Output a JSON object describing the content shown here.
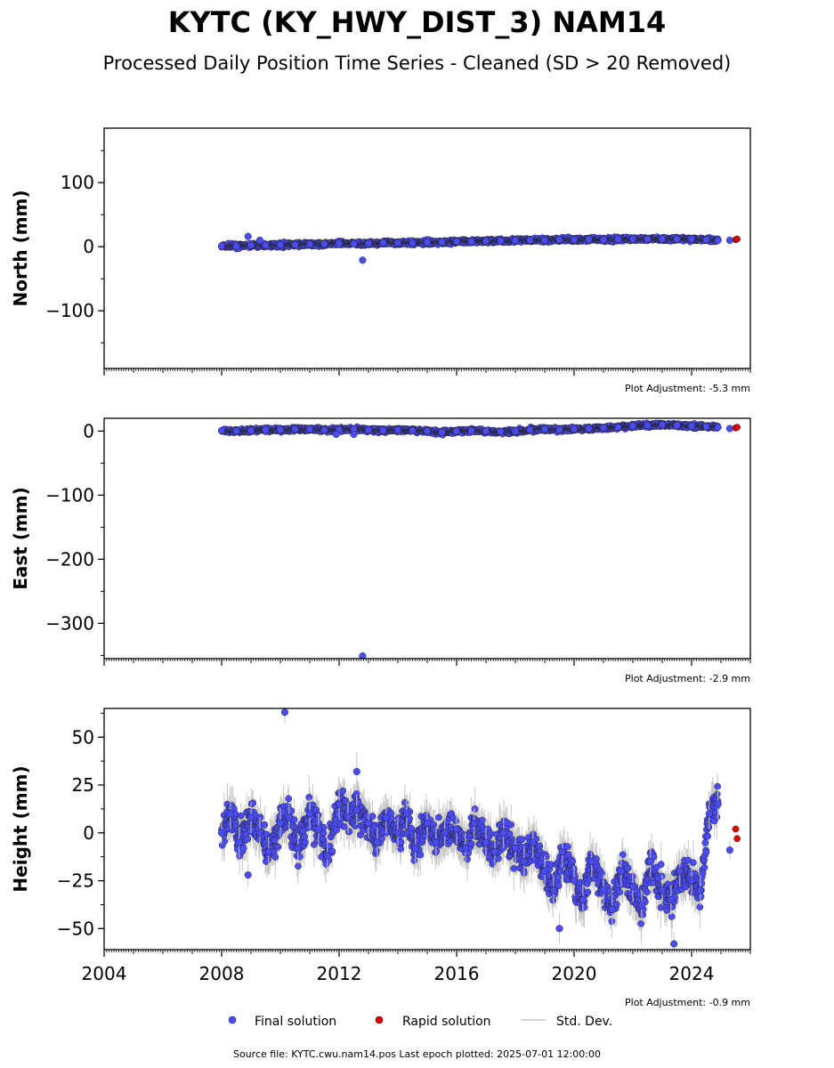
{
  "figure": {
    "title": "KYTC (KY_HWY_DIST_3) NAM14",
    "subtitle": "Processed Daily Position Time Series - Cleaned (SD > 20 Removed)",
    "footer": "Source file: KYTC.cwu.nam14.pos  Last epoch plotted: 2025-07-01 12:00:00",
    "legend": {
      "final": "Final solution",
      "rapid": "Rapid solution",
      "std": "Std. Dev."
    },
    "colors": {
      "final": "#4c4cff",
      "rapid": "#e00000",
      "std": "#c8c8c8",
      "marker_edge": "#222222"
    }
  },
  "chart_data": [
    {
      "type": "scatter",
      "ylabel": "North (mm)",
      "note": "Plot Adjustment: -5.3 mm",
      "xlim": [
        2004,
        2026
      ],
      "ylim": [
        -190,
        185
      ],
      "yticks": [
        -100,
        0,
        100
      ],
      "xticks": [
        2004,
        2008,
        2012,
        2016,
        2020,
        2024
      ],
      "x_tick_labels_shown": false,
      "final_x": [
        2008.0,
        2008.5,
        2009.0,
        2009.5,
        2010.0,
        2010.5,
        2011.0,
        2011.5,
        2012.0,
        2012.5,
        2013.0,
        2013.5,
        2014.0,
        2014.5,
        2015.0,
        2015.5,
        2016.0,
        2016.5,
        2017.0,
        2017.5,
        2018.0,
        2018.5,
        2019.0,
        2019.5,
        2020.0,
        2020.5,
        2021.0,
        2021.5,
        2022.0,
        2022.5,
        2023.0,
        2023.5,
        2024.0,
        2024.5,
        2024.9,
        2008.9,
        2009.3,
        2012.8,
        2025.3
      ],
      "final_y": [
        1,
        1,
        2,
        2,
        3,
        3,
        4,
        4,
        5,
        5,
        5,
        6,
        6,
        6,
        7,
        7,
        8,
        8,
        9,
        9,
        10,
        10,
        10,
        11,
        11,
        11,
        11,
        12,
        12,
        12,
        12,
        12,
        12,
        11,
        10,
        16,
        10,
        -21,
        10
      ],
      "final_std": [
        4,
        5,
        5,
        5,
        5,
        5,
        5,
        5,
        5,
        5,
        5,
        5,
        5,
        5,
        5,
        5,
        5,
        5,
        5,
        5,
        5,
        5,
        5,
        5,
        5,
        5,
        5,
        5,
        5,
        5,
        5,
        5,
        5,
        5,
        5,
        8,
        6,
        6,
        2
      ],
      "rapid_x": [
        2025.5,
        2025.55
      ],
      "rapid_y": [
        11,
        12
      ]
    },
    {
      "type": "scatter",
      "ylabel": "East (mm)",
      "note": "Plot Adjustment: -2.9 mm",
      "xlim": [
        2004,
        2026
      ],
      "ylim": [
        -355,
        20
      ],
      "yticks": [
        -300,
        -200,
        -100,
        0
      ],
      "xticks": [
        2004,
        2008,
        2012,
        2016,
        2020,
        2024
      ],
      "x_tick_labels_shown": false,
      "final_x": [
        2008.0,
        2008.5,
        2009.0,
        2009.5,
        2010.0,
        2010.5,
        2011.0,
        2011.5,
        2012.0,
        2012.5,
        2013.0,
        2013.5,
        2014.0,
        2014.5,
        2015.0,
        2015.5,
        2016.0,
        2016.5,
        2017.0,
        2017.5,
        2018.0,
        2018.5,
        2019.0,
        2019.5,
        2020.0,
        2020.5,
        2021.0,
        2021.5,
        2022.0,
        2022.5,
        2023.0,
        2023.5,
        2024.0,
        2024.5,
        2024.9,
        2011.9,
        2012.5,
        2012.8,
        2025.3
      ],
      "final_y": [
        1,
        0,
        1,
        2,
        2,
        3,
        3,
        2,
        2,
        3,
        2,
        1,
        2,
        1,
        0,
        -2,
        0,
        1,
        0,
        -1,
        0,
        2,
        3,
        2,
        3,
        4,
        5,
        6,
        8,
        9,
        10,
        9,
        8,
        7,
        6,
        -5,
        -5,
        -351,
        4
      ],
      "final_std": [
        4,
        5,
        5,
        5,
        5,
        5,
        5,
        5,
        5,
        5,
        5,
        5,
        5,
        5,
        5,
        5,
        5,
        5,
        5,
        5,
        5,
        5,
        5,
        5,
        5,
        5,
        5,
        5,
        5,
        5,
        5,
        5,
        5,
        5,
        5,
        5,
        5,
        6,
        2
      ],
      "rapid_x": [
        2025.5,
        2025.55
      ],
      "rapid_y": [
        5,
        6
      ]
    },
    {
      "type": "scatter",
      "ylabel": "Height (mm)",
      "note": "Plot Adjustment: -0.9 mm",
      "xlim": [
        2004,
        2026
      ],
      "ylim": [
        -61,
        65
      ],
      "yticks": [
        -50,
        -25,
        0,
        25,
        50
      ],
      "xticks": [
        2004,
        2008,
        2012,
        2016,
        2020,
        2024
      ],
      "x_tick_labels_shown": true,
      "final_x": [
        2008.0,
        2008.3,
        2008.6,
        2009.0,
        2009.3,
        2009.6,
        2010.0,
        2010.3,
        2010.6,
        2011.0,
        2011.3,
        2011.6,
        2012.0,
        2012.3,
        2012.6,
        2013.0,
        2013.3,
        2013.6,
        2014.0,
        2014.3,
        2014.6,
        2015.0,
        2015.3,
        2015.6,
        2016.0,
        2016.3,
        2016.6,
        2017.0,
        2017.3,
        2017.6,
        2018.0,
        2018.3,
        2018.6,
        2019.0,
        2019.3,
        2019.6,
        2020.0,
        2020.3,
        2020.6,
        2021.0,
        2021.3,
        2021.6,
        2022.0,
        2022.3,
        2022.6,
        2023.0,
        2023.3,
        2023.6,
        2024.0,
        2024.3,
        2024.6,
        2024.9,
        2010.15,
        2012.6,
        2019.5,
        2023.4,
        2008.9,
        2025.3
      ],
      "final_y": [
        0,
        10,
        -5,
        8,
        0,
        -10,
        5,
        8,
        -8,
        10,
        2,
        -12,
        15,
        8,
        12,
        5,
        -5,
        8,
        0,
        10,
        -8,
        5,
        -5,
        0,
        2,
        -8,
        5,
        -5,
        -10,
        0,
        -8,
        -15,
        -5,
        -20,
        -30,
        -10,
        -25,
        -35,
        -15,
        -30,
        -40,
        -20,
        -28,
        -38,
        -15,
        -30,
        -35,
        -20,
        -25,
        -30,
        10,
        15,
        63,
        32,
        -50,
        -58,
        -22,
        -9
      ],
      "final_std": [
        6,
        8,
        8,
        8,
        8,
        8,
        8,
        8,
        8,
        8,
        8,
        8,
        8,
        8,
        8,
        8,
        8,
        8,
        8,
        8,
        8,
        8,
        8,
        8,
        8,
        8,
        8,
        8,
        8,
        8,
        8,
        8,
        8,
        8,
        8,
        8,
        8,
        8,
        8,
        8,
        8,
        8,
        8,
        8,
        8,
        8,
        8,
        8,
        8,
        8,
        8,
        8,
        6,
        10,
        8,
        6,
        6,
        5
      ],
      "rapid_x": [
        2025.5,
        2025.55
      ],
      "rapid_y": [
        2,
        -3
      ]
    }
  ]
}
